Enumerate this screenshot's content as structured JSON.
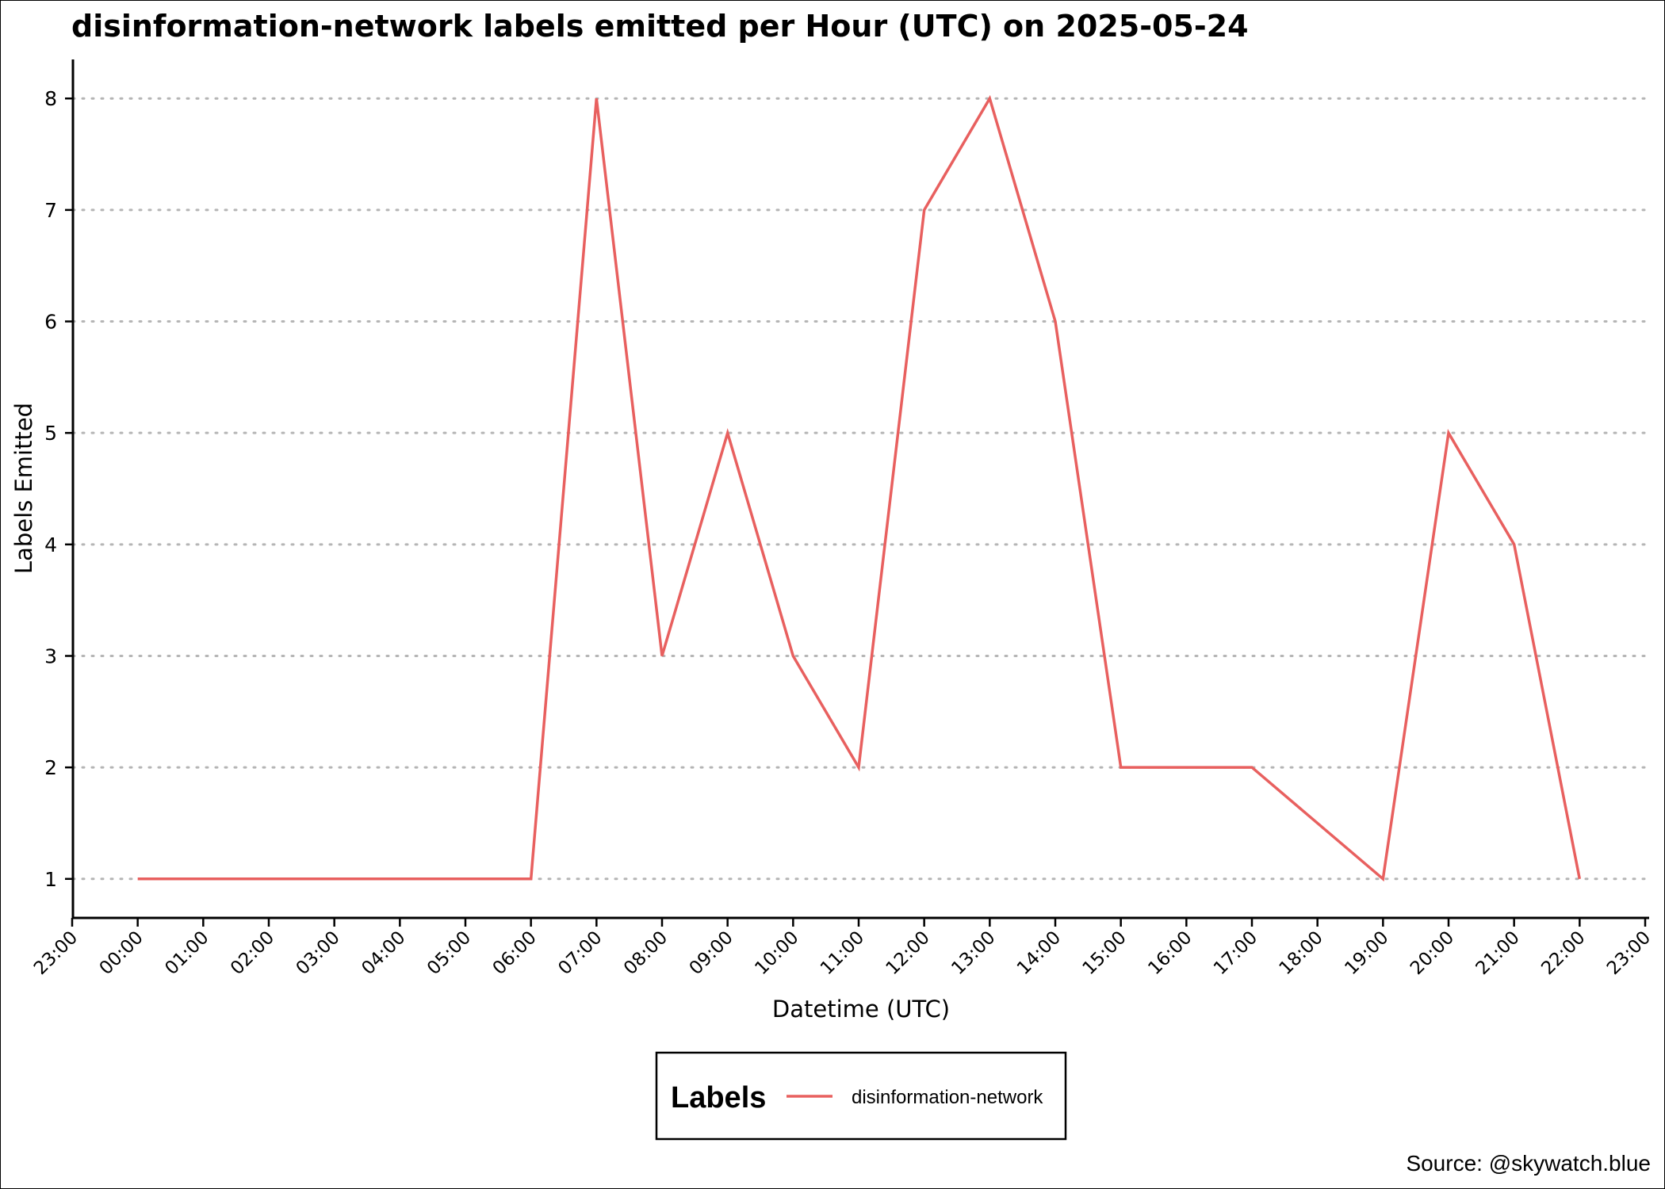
{
  "chart_data": {
    "type": "line",
    "title": "disinformation-network labels emitted per Hour (UTC) on 2025-05-24",
    "xlabel": "Datetime (UTC)",
    "ylabel": "Labels Emitted",
    "x_tick_labels": [
      "23:00",
      "00:00",
      "01:00",
      "02:00",
      "03:00",
      "04:00",
      "05:00",
      "06:00",
      "07:00",
      "08:00",
      "09:00",
      "10:00",
      "11:00",
      "12:00",
      "13:00",
      "14:00",
      "15:00",
      "16:00",
      "17:00",
      "18:00",
      "19:00",
      "20:00",
      "21:00",
      "22:00",
      "23:00"
    ],
    "x_range": [
      "2025-05-23 23:00",
      "2025-05-24 23:00"
    ],
    "y_ticks": [
      1,
      2,
      3,
      4,
      5,
      6,
      7,
      8
    ],
    "ylim": [
      0.65,
      8.35
    ],
    "grid": "horizontal-dotted",
    "legend": {
      "title": "Labels",
      "position": "bottom"
    },
    "series": [
      {
        "name": "disinformation-network",
        "color": "#e8605f",
        "points": [
          {
            "x": "00:00",
            "y": 1
          },
          {
            "x": "06:00",
            "y": 1
          },
          {
            "x": "07:00",
            "y": 8
          },
          {
            "x": "08:00",
            "y": 3
          },
          {
            "x": "09:00",
            "y": 5
          },
          {
            "x": "10:00",
            "y": 3
          },
          {
            "x": "11:00",
            "y": 2
          },
          {
            "x": "12:00",
            "y": 7
          },
          {
            "x": "13:00",
            "y": 8
          },
          {
            "x": "14:00",
            "y": 6
          },
          {
            "x": "15:00",
            "y": 2
          },
          {
            "x": "17:00",
            "y": 2
          },
          {
            "x": "19:00",
            "y": 1
          },
          {
            "x": "20:00",
            "y": 5
          },
          {
            "x": "21:00",
            "y": 4
          },
          {
            "x": "22:00",
            "y": 1
          }
        ]
      }
    ],
    "source": "Source: @skywatch.blue"
  }
}
